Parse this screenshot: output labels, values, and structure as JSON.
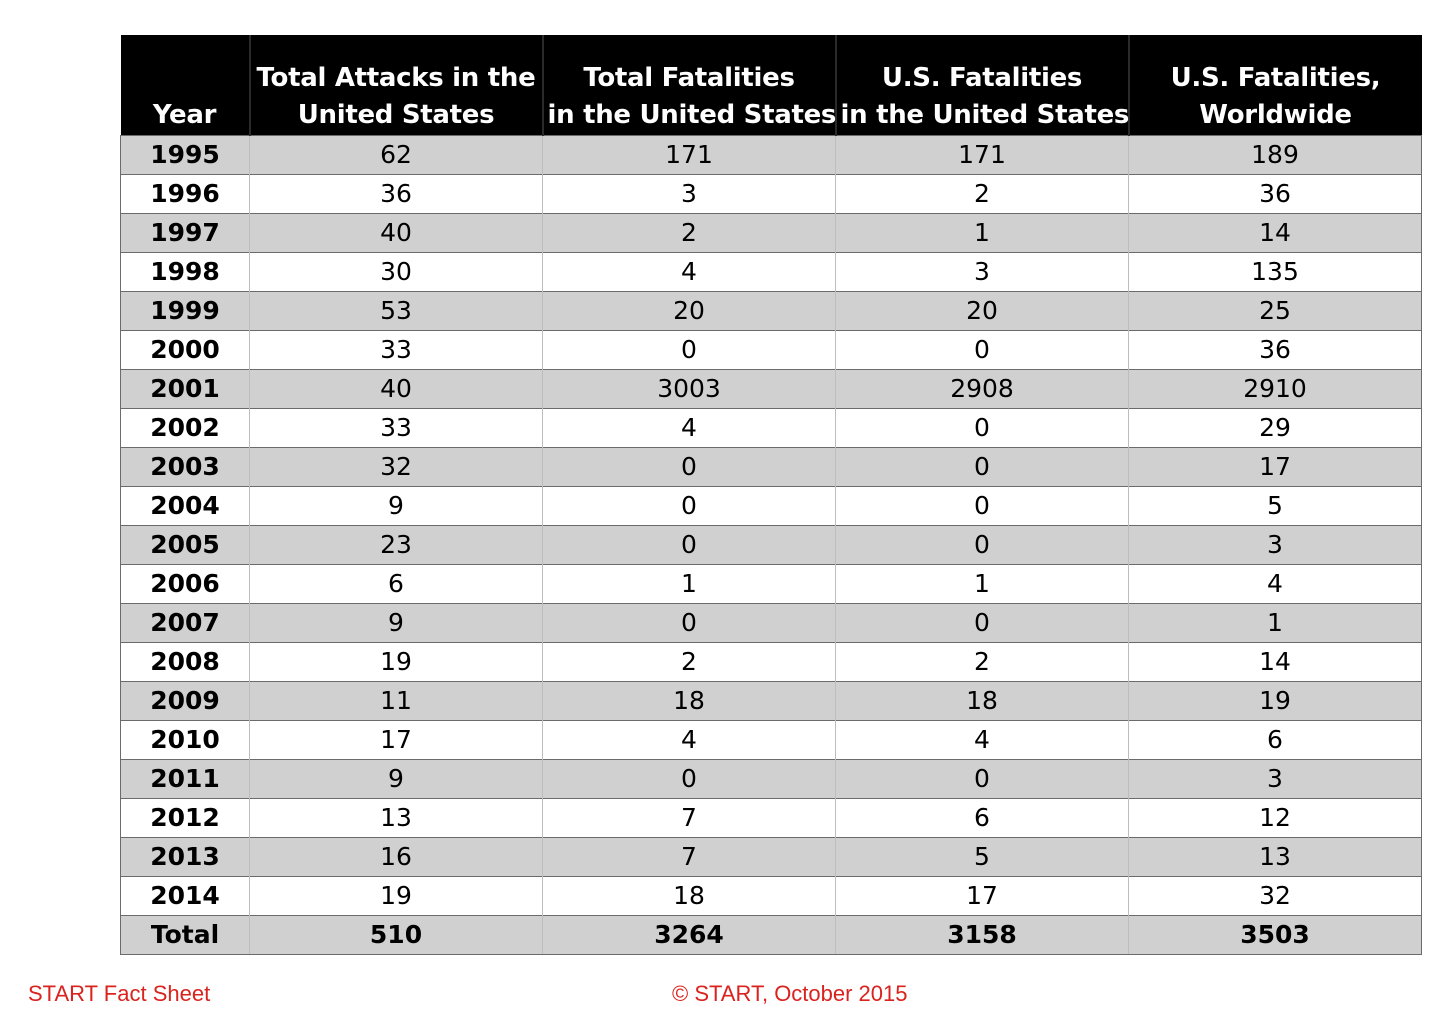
{
  "table": {
    "headers": [
      "Year",
      "Total Attacks in the United States",
      "Total Fatalities in the United States",
      "U.S. Fatalities in the United States",
      "U.S. Fatalities, Worldwide"
    ],
    "header_lines": [
      [
        "Year"
      ],
      [
        "Total Attacks in the",
        "United States"
      ],
      [
        "Total Fatalities",
        "in the United States"
      ],
      [
        "U.S. Fatalities",
        "in the United States"
      ],
      [
        "U.S. Fatalities,",
        "Worldwide"
      ]
    ],
    "rows": [
      [
        "1995",
        "62",
        "171",
        "171",
        "189"
      ],
      [
        "1996",
        "36",
        "3",
        "2",
        "36"
      ],
      [
        "1997",
        "40",
        "2",
        "1",
        "14"
      ],
      [
        "1998",
        "30",
        "4",
        "3",
        "135"
      ],
      [
        "1999",
        "53",
        "20",
        "20",
        "25"
      ],
      [
        "2000",
        "33",
        "0",
        "0",
        "36"
      ],
      [
        "2001",
        "40",
        "3003",
        "2908",
        "2910"
      ],
      [
        "2002",
        "33",
        "4",
        "0",
        "29"
      ],
      [
        "2003",
        "32",
        "0",
        "0",
        "17"
      ],
      [
        "2004",
        "9",
        "0",
        "0",
        "5"
      ],
      [
        "2005",
        "23",
        "0",
        "0",
        "3"
      ],
      [
        "2006",
        "6",
        "1",
        "1",
        "4"
      ],
      [
        "2007",
        "9",
        "0",
        "0",
        "1"
      ],
      [
        "2008",
        "19",
        "2",
        "2",
        "14"
      ],
      [
        "2009",
        "11",
        "18",
        "18",
        "19"
      ],
      [
        "2010",
        "17",
        "4",
        "4",
        "6"
      ],
      [
        "2011",
        "9",
        "0",
        "0",
        "3"
      ],
      [
        "2012",
        "13",
        "7",
        "6",
        "12"
      ],
      [
        "2013",
        "16",
        "7",
        "5",
        "13"
      ],
      [
        "2014",
        "19",
        "18",
        "17",
        "32"
      ]
    ],
    "total": [
      "Total",
      "510",
      "3264",
      "3158",
      "3503"
    ]
  },
  "footer": {
    "left": "START Fact Sheet",
    "center": "© START, October 2015"
  },
  "colors": {
    "header_bg": "#000000",
    "header_text": "#ffffff",
    "row_shaded": "#d0d0d0",
    "row_plain": "#ffffff",
    "footer_text": "#d9231f"
  }
}
